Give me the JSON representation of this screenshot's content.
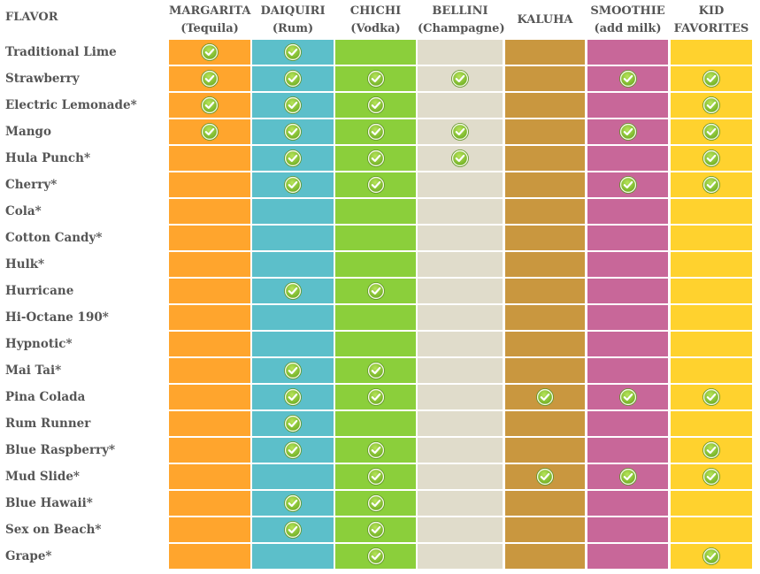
{
  "table": {
    "flavor_header": "FLAVOR",
    "columns": [
      {
        "name": "MARGARITA",
        "sub": "(Tequila)",
        "color": "#ffa52d"
      },
      {
        "name": "DAIQUIRI",
        "sub": "(Rum)",
        "color": "#5cbfca"
      },
      {
        "name": "CHICHI",
        "sub": "(Vodka)",
        "color": "#8bcf3b"
      },
      {
        "name": "BELLINI",
        "sub": "(Champagne)",
        "color": "#e0dccb"
      },
      {
        "name": "KALUHA",
        "color": "#c9973f"
      },
      {
        "name": "SMOOTHIE",
        "sub": "(add milk)",
        "color": "#c86799"
      },
      {
        "name": "KID",
        "sub": "FAVORITES",
        "color": "#ffd22e"
      }
    ],
    "rows": [
      {
        "flavor": "Traditional Lime",
        "checks": [
          true,
          true,
          false,
          false,
          false,
          false,
          false
        ]
      },
      {
        "flavor": "Strawberry",
        "checks": [
          true,
          true,
          true,
          true,
          false,
          true,
          true
        ]
      },
      {
        "flavor": "Electric Lemonade*",
        "checks": [
          true,
          true,
          true,
          false,
          false,
          false,
          true
        ]
      },
      {
        "flavor": "Mango",
        "checks": [
          true,
          true,
          true,
          true,
          false,
          true,
          true
        ]
      },
      {
        "flavor": "Hula Punch*",
        "checks": [
          false,
          true,
          true,
          true,
          false,
          false,
          true
        ]
      },
      {
        "flavor": "Cherry*",
        "checks": [
          false,
          true,
          true,
          false,
          false,
          true,
          true
        ]
      },
      {
        "flavor": "Cola*",
        "checks": [
          false,
          false,
          false,
          false,
          false,
          false,
          false
        ]
      },
      {
        "flavor": "Cotton Candy*",
        "checks": [
          false,
          false,
          false,
          false,
          false,
          false,
          false
        ]
      },
      {
        "flavor": "Hulk*",
        "checks": [
          false,
          false,
          false,
          false,
          false,
          false,
          false
        ]
      },
      {
        "flavor": "Hurricane",
        "checks": [
          false,
          true,
          true,
          false,
          false,
          false,
          false
        ]
      },
      {
        "flavor": "Hi-Octane 190*",
        "checks": [
          false,
          false,
          false,
          false,
          false,
          false,
          false
        ]
      },
      {
        "flavor": "Hypnotic*",
        "checks": [
          false,
          false,
          false,
          false,
          false,
          false,
          false
        ]
      },
      {
        "flavor": "Mai Tai*",
        "checks": [
          false,
          true,
          true,
          false,
          false,
          false,
          false
        ]
      },
      {
        "flavor": "Pina Colada",
        "checks": [
          false,
          true,
          true,
          false,
          true,
          true,
          true
        ]
      },
      {
        "flavor": "Rum Runner",
        "checks": [
          false,
          true,
          false,
          false,
          false,
          false,
          false
        ]
      },
      {
        "flavor": "Blue Raspberry*",
        "checks": [
          false,
          true,
          true,
          false,
          false,
          false,
          true
        ]
      },
      {
        "flavor": "Mud Slide*",
        "checks": [
          false,
          false,
          true,
          false,
          true,
          true,
          true
        ]
      },
      {
        "flavor": "Blue Hawaii*",
        "checks": [
          false,
          true,
          true,
          false,
          false,
          false,
          false
        ]
      },
      {
        "flavor": "Sex on Beach*",
        "checks": [
          false,
          true,
          true,
          false,
          false,
          false,
          false
        ]
      },
      {
        "flavor": "Grape*",
        "checks": [
          false,
          false,
          true,
          false,
          false,
          false,
          true
        ]
      }
    ]
  }
}
